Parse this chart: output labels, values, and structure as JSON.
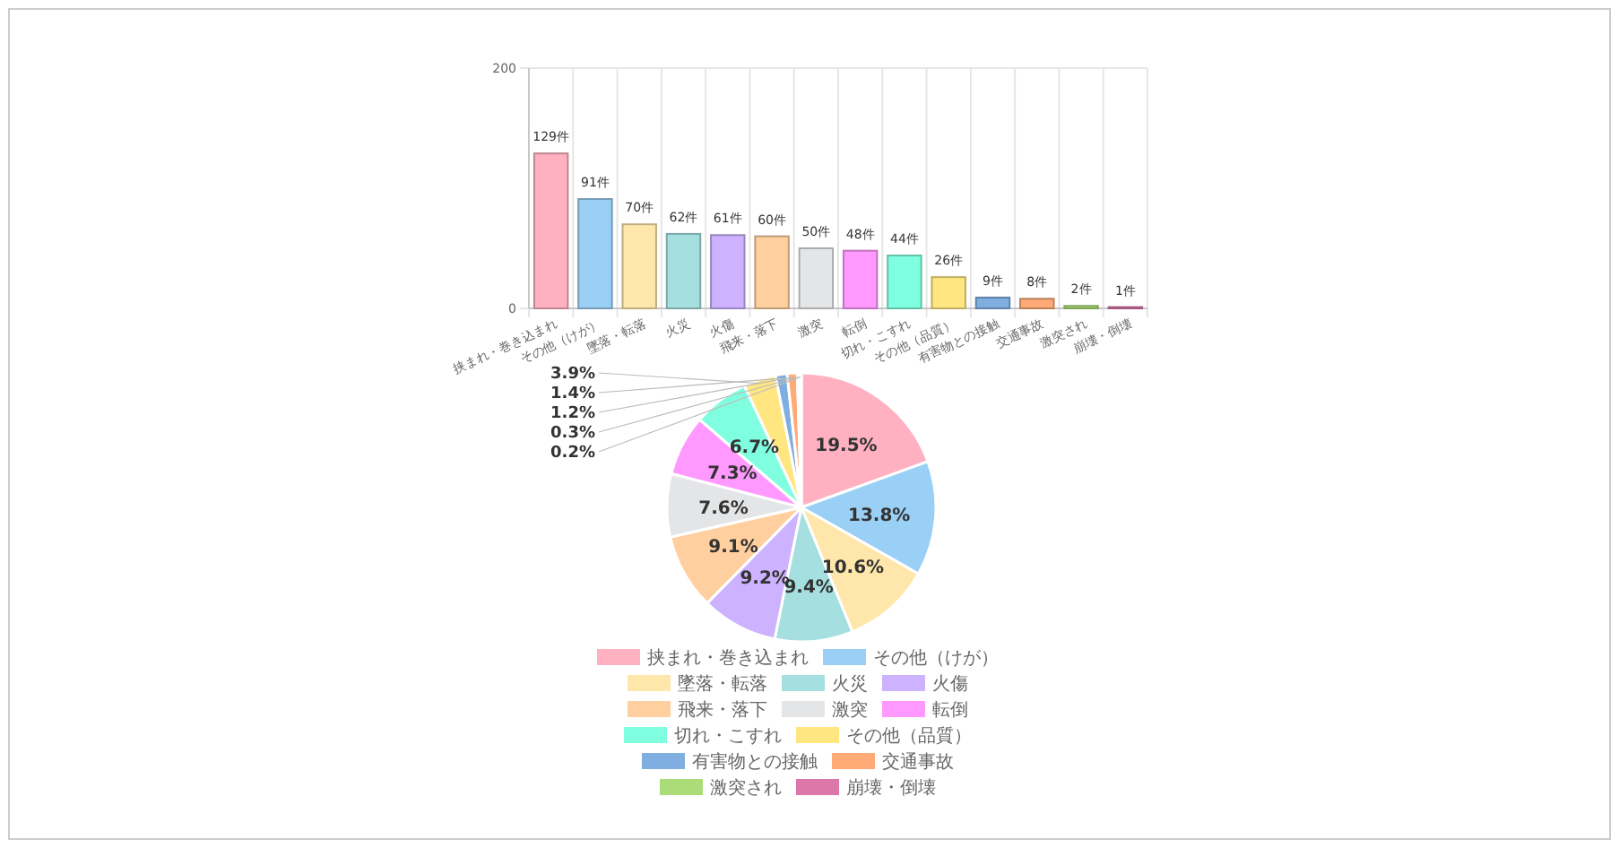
{
  "chart_data": [
    {
      "type": "bar",
      "categories": [
        "挟まれ・巻き込まれ",
        "その他（けが）",
        "墜落・転落",
        "火災",
        "火傷",
        "飛来・落下",
        "激突",
        "転倒",
        "切れ・こすれ",
        "その他（品質）",
        "有害物との接触",
        "交通事故",
        "激突され",
        "崩壊・倒壊"
      ],
      "values": [
        129,
        91,
        70,
        62,
        61,
        60,
        50,
        48,
        44,
        26,
        9,
        8,
        2,
        1
      ],
      "value_labels": [
        "129件",
        "91件",
        "70件",
        "62件",
        "61件",
        "60件",
        "50件",
        "48件",
        "44件",
        "26件",
        "9件",
        "8件",
        "2件",
        "1件"
      ],
      "colors": [
        "#ffb1c1",
        "#9ad0f5",
        "#ffe6aa",
        "#a5dfdf",
        "#ccb2ff",
        "#ffcf9f",
        "#e4e5e7",
        "#ff99ff",
        "#80ffe0",
        "#ffe680",
        "#80aee0",
        "#ffaa77",
        "#aadd77",
        "#dd77aa"
      ],
      "ylim": [
        0,
        200
      ],
      "yticks": [
        0,
        200
      ],
      "grid": true
    },
    {
      "type": "pie",
      "categories": [
        "挟まれ・巻き込まれ",
        "その他（けが）",
        "墜落・転落",
        "火災",
        "火傷",
        "飛来・落下",
        "激突",
        "転倒",
        "切れ・こすれ",
        "その他（品質）",
        "有害物との接触",
        "交通事故",
        "激突され",
        "崩壊・倒壊"
      ],
      "values": [
        19.5,
        13.8,
        10.6,
        9.4,
        9.2,
        9.1,
        7.6,
        7.3,
        6.7,
        3.9,
        1.4,
        1.2,
        0.3,
        0.2
      ],
      "value_labels": [
        "19.5%",
        "13.8%",
        "10.6%",
        "9.4%",
        "9.2%",
        "9.1%",
        "7.6%",
        "7.3%",
        "6.7%",
        "3.9%",
        "1.4%",
        "1.2%",
        "0.3%",
        "0.2%"
      ],
      "colors": [
        "#ffb1c1",
        "#9ad0f5",
        "#ffe6aa",
        "#a5dfdf",
        "#ccb2ff",
        "#ffcf9f",
        "#e4e5e7",
        "#ff99ff",
        "#80ffe0",
        "#ffe680",
        "#80aee0",
        "#ffaa77",
        "#aadd77",
        "#dd77aa"
      ],
      "legend": "bottom"
    }
  ]
}
